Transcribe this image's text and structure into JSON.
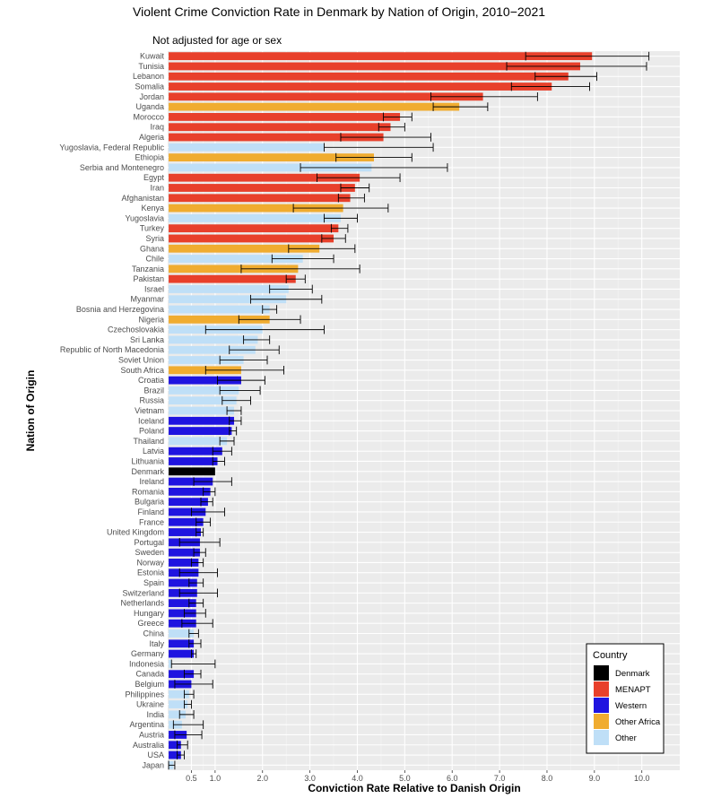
{
  "chart_data": {
    "type": "bar",
    "orientation": "horizontal",
    "title": "Violent Crime Conviction Rate in Denmark by Nation of Origin, 2010−2021",
    "subtitle": "Not adjusted for age or sex",
    "xlabel": "Conviction Rate Relative to Danish Origin",
    "ylabel": "Nation of Origin",
    "xlim": [
      0,
      10.8
    ],
    "xticks": [
      0.5,
      1.0,
      2.0,
      3.0,
      4.0,
      5.0,
      6.0,
      7.0,
      8.0,
      9.0,
      10.0
    ],
    "xtick_labels": [
      "0.5",
      "1.0",
      "2.0",
      "3.0",
      "4.0",
      "5.0",
      "6.0",
      "7.0",
      "8.0",
      "9.0",
      "10.0"
    ],
    "grid": true,
    "legend": {
      "title": "Country",
      "position": "bottom-right",
      "entries": [
        {
          "name": "Denmark",
          "color": "#000000"
        },
        {
          "name": "MENAPT",
          "color": "#e8402b"
        },
        {
          "name": "Western",
          "color": "#1f14e0"
        },
        {
          "name": "Other Africa",
          "color": "#f0ac30"
        },
        {
          "name": "Other",
          "color": "#bfdff7"
        }
      ]
    },
    "bars": [
      {
        "label": "Kuwait",
        "group": "MENAPT",
        "value": 8.95,
        "lo": 7.55,
        "hi": 10.15
      },
      {
        "label": "Tunisia",
        "group": "MENAPT",
        "value": 8.7,
        "lo": 7.15,
        "hi": 10.1
      },
      {
        "label": "Lebanon",
        "group": "MENAPT",
        "value": 8.45,
        "lo": 7.75,
        "hi": 9.05
      },
      {
        "label": "Somalia",
        "group": "MENAPT",
        "value": 8.1,
        "lo": 7.25,
        "hi": 8.9
      },
      {
        "label": "Jordan",
        "group": "MENAPT",
        "value": 6.65,
        "lo": 5.55,
        "hi": 7.8
      },
      {
        "label": "Uganda",
        "group": "Other Africa",
        "value": 6.15,
        "lo": 5.6,
        "hi": 6.75
      },
      {
        "label": "Morocco",
        "group": "MENAPT",
        "value": 4.9,
        "lo": 4.55,
        "hi": 5.15
      },
      {
        "label": "Iraq",
        "group": "MENAPT",
        "value": 4.7,
        "lo": 4.45,
        "hi": 5.0
      },
      {
        "label": "Algeria",
        "group": "MENAPT",
        "value": 4.55,
        "lo": 3.65,
        "hi": 5.55
      },
      {
        "label": "Yugoslavia, Federal Republic",
        "group": "Other",
        "value": 3.3,
        "lo": 3.3,
        "hi": 5.6
      },
      {
        "label": "Ethiopia",
        "group": "Other Africa",
        "value": 4.35,
        "lo": 3.55,
        "hi": 5.15
      },
      {
        "label": "Serbia and Montenegro",
        "group": "Other",
        "value": 4.3,
        "lo": 2.8,
        "hi": 5.9
      },
      {
        "label": "Egypt",
        "group": "MENAPT",
        "value": 4.05,
        "lo": 3.15,
        "hi": 4.9
      },
      {
        "label": "Iran",
        "group": "MENAPT",
        "value": 3.95,
        "lo": 3.65,
        "hi": 4.25
      },
      {
        "label": "Afghanistan",
        "group": "MENAPT",
        "value": 3.85,
        "lo": 3.6,
        "hi": 4.15
      },
      {
        "label": "Kenya",
        "group": "Other Africa",
        "value": 3.7,
        "lo": 2.65,
        "hi": 4.65
      },
      {
        "label": "Yugoslavia",
        "group": "Other",
        "value": 3.65,
        "lo": 3.3,
        "hi": 4.0
      },
      {
        "label": "Turkey",
        "group": "MENAPT",
        "value": 3.6,
        "lo": 3.45,
        "hi": 3.8
      },
      {
        "label": "Syria",
        "group": "MENAPT",
        "value": 3.5,
        "lo": 3.25,
        "hi": 3.75
      },
      {
        "label": "Ghana",
        "group": "Other Africa",
        "value": 3.2,
        "lo": 2.55,
        "hi": 3.95
      },
      {
        "label": "Chile",
        "group": "Other",
        "value": 2.85,
        "lo": 2.2,
        "hi": 3.5
      },
      {
        "label": "Tanzania",
        "group": "Other Africa",
        "value": 2.75,
        "lo": 1.55,
        "hi": 4.05
      },
      {
        "label": "Pakistan",
        "group": "MENAPT",
        "value": 2.7,
        "lo": 2.5,
        "hi": 2.9
      },
      {
        "label": "Israel",
        "group": "Other",
        "value": 2.55,
        "lo": 2.15,
        "hi": 3.05
      },
      {
        "label": "Myanmar",
        "group": "Other",
        "value": 2.5,
        "lo": 1.75,
        "hi": 3.25
      },
      {
        "label": "Bosnia and Herzegovina",
        "group": "Other",
        "value": 2.15,
        "lo": 2.0,
        "hi": 2.3
      },
      {
        "label": "Nigeria",
        "group": "Other Africa",
        "value": 2.15,
        "lo": 1.5,
        "hi": 2.8
      },
      {
        "label": "Czechoslovakia",
        "group": "Other",
        "value": 2.0,
        "lo": 0.8,
        "hi": 3.3
      },
      {
        "label": "Sri Lanka",
        "group": "Other",
        "value": 1.9,
        "lo": 1.6,
        "hi": 2.15
      },
      {
        "label": "Republic of North Macedonia",
        "group": "Other",
        "value": 1.85,
        "lo": 1.3,
        "hi": 2.35
      },
      {
        "label": "Soviet Union",
        "group": "Other",
        "value": 1.6,
        "lo": 1.1,
        "hi": 2.1
      },
      {
        "label": "South Africa",
        "group": "Other Africa",
        "value": 1.55,
        "lo": 0.8,
        "hi": 2.45
      },
      {
        "label": "Croatia",
        "group": "Western",
        "value": 1.55,
        "lo": 1.05,
        "hi": 2.05
      },
      {
        "label": "Brazil",
        "group": "Other",
        "value": 1.5,
        "lo": 1.1,
        "hi": 1.95
      },
      {
        "label": "Russia",
        "group": "Other",
        "value": 1.45,
        "lo": 1.15,
        "hi": 1.75
      },
      {
        "label": "Vietnam",
        "group": "Other",
        "value": 1.4,
        "lo": 1.25,
        "hi": 1.55
      },
      {
        "label": "Iceland",
        "group": "Western",
        "value": 1.4,
        "lo": 1.3,
        "hi": 1.55
      },
      {
        "label": "Poland",
        "group": "Western",
        "value": 1.35,
        "lo": 1.3,
        "hi": 1.45
      },
      {
        "label": "Thailand",
        "group": "Other",
        "value": 1.25,
        "lo": 1.1,
        "hi": 1.4
      },
      {
        "label": "Latvia",
        "group": "Western",
        "value": 1.15,
        "lo": 0.95,
        "hi": 1.35
      },
      {
        "label": "Lithuania",
        "group": "Western",
        "value": 1.05,
        "lo": 0.95,
        "hi": 1.2
      },
      {
        "label": "Denmark",
        "group": "Denmark",
        "value": 1.0,
        "lo": null,
        "hi": null
      },
      {
        "label": "Ireland",
        "group": "Western",
        "value": 0.95,
        "lo": 0.55,
        "hi": 1.35
      },
      {
        "label": "Romania",
        "group": "Western",
        "value": 0.9,
        "lo": 0.75,
        "hi": 1.0
      },
      {
        "label": "Bulgaria",
        "group": "Western",
        "value": 0.85,
        "lo": 0.7,
        "hi": 0.95
      },
      {
        "label": "Finland",
        "group": "Western",
        "value": 0.8,
        "lo": 0.5,
        "hi": 1.2
      },
      {
        "label": "France",
        "group": "Western",
        "value": 0.75,
        "lo": 0.6,
        "hi": 0.9
      },
      {
        "label": "United Kingdom",
        "group": "Western",
        "value": 0.7,
        "lo": 0.6,
        "hi": 0.75
      },
      {
        "label": "Portugal",
        "group": "Western",
        "value": 0.68,
        "lo": 0.25,
        "hi": 1.1
      },
      {
        "label": "Sweden",
        "group": "Western",
        "value": 0.68,
        "lo": 0.55,
        "hi": 0.8
      },
      {
        "label": "Norway",
        "group": "Western",
        "value": 0.65,
        "lo": 0.5,
        "hi": 0.75
      },
      {
        "label": "Estonia",
        "group": "Western",
        "value": 0.65,
        "lo": 0.25,
        "hi": 1.05
      },
      {
        "label": "Spain",
        "group": "Western",
        "value": 0.62,
        "lo": 0.45,
        "hi": 0.75
      },
      {
        "label": "Switzerland",
        "group": "Western",
        "value": 0.62,
        "lo": 0.25,
        "hi": 1.05
      },
      {
        "label": "Netherlands",
        "group": "Western",
        "value": 0.6,
        "lo": 0.45,
        "hi": 0.75
      },
      {
        "label": "Hungary",
        "group": "Western",
        "value": 0.6,
        "lo": 0.35,
        "hi": 0.8
      },
      {
        "label": "Greece",
        "group": "Western",
        "value": 0.6,
        "lo": 0.3,
        "hi": 0.95
      },
      {
        "label": "China",
        "group": "Other",
        "value": 0.55,
        "lo": 0.45,
        "hi": 0.65
      },
      {
        "label": "Italy",
        "group": "Western",
        "value": 0.55,
        "lo": 0.45,
        "hi": 0.7
      },
      {
        "label": "Germany",
        "group": "Western",
        "value": 0.55,
        "lo": 0.5,
        "hi": 0.6
      },
      {
        "label": "Indonesia",
        "group": "Other",
        "value": 0.08,
        "lo": 0.08,
        "hi": 1.0
      },
      {
        "label": "Canada",
        "group": "Western",
        "value": 0.55,
        "lo": 0.35,
        "hi": 0.7
      },
      {
        "label": "Belgium",
        "group": "Western",
        "value": 0.5,
        "lo": 0.15,
        "hi": 0.95
      },
      {
        "label": "Philippines",
        "group": "Other",
        "value": 0.45,
        "lo": 0.35,
        "hi": 0.55
      },
      {
        "label": "Ukraine",
        "group": "Other",
        "value": 0.42,
        "lo": 0.35,
        "hi": 0.5
      },
      {
        "label": "India",
        "group": "Other",
        "value": 0.38,
        "lo": 0.25,
        "hi": 0.55
      },
      {
        "label": "Argentina",
        "group": "Other",
        "value": 0.3,
        "lo": 0.12,
        "hi": 0.75
      },
      {
        "label": "Austria",
        "group": "Western",
        "value": 0.4,
        "lo": 0.15,
        "hi": 0.72
      },
      {
        "label": "Australia",
        "group": "Western",
        "value": 0.28,
        "lo": 0.2,
        "hi": 0.42
      },
      {
        "label": "USA",
        "group": "Western",
        "value": 0.28,
        "lo": 0.2,
        "hi": 0.35
      },
      {
        "label": "Japan",
        "group": "Other",
        "value": 0.12,
        "lo": 0.02,
        "hi": 0.15
      }
    ]
  }
}
